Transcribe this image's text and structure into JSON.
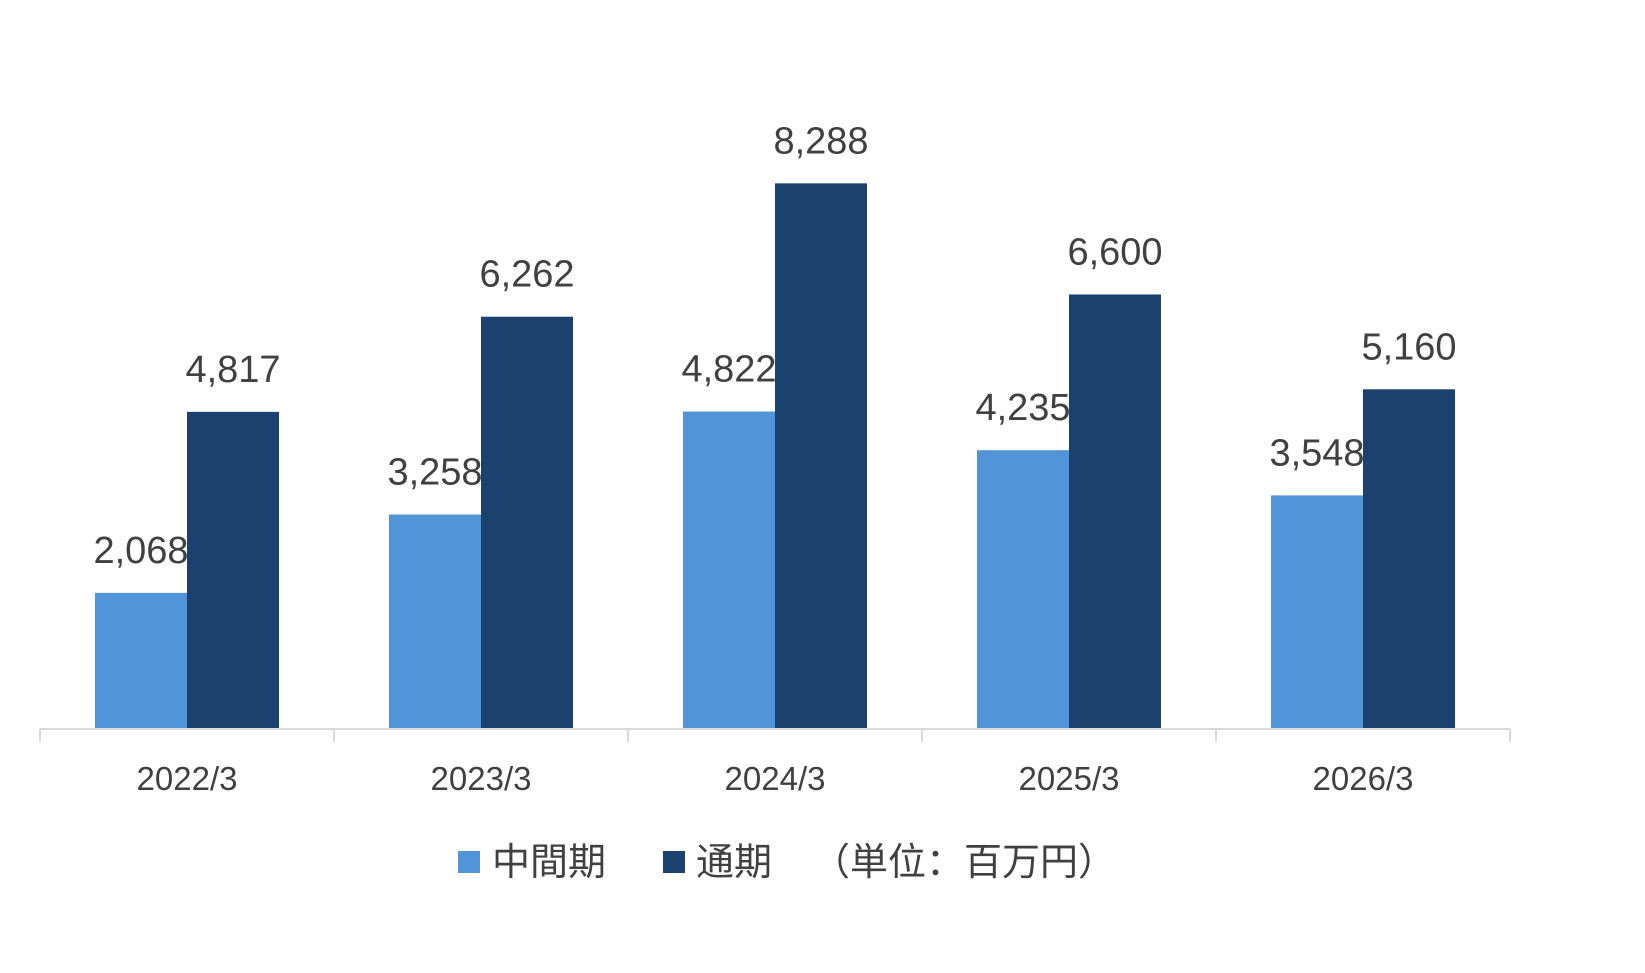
{
  "chart_data": {
    "type": "bar",
    "categories": [
      "2022/3",
      "2023/3",
      "2024/3",
      "2025/3",
      "2026/3"
    ],
    "series": [
      {
        "name": "中間期",
        "color": "#4f95d8",
        "values": [
          2068,
          3258,
          4822,
          4235,
          3548
        ],
        "labels": [
          "2,068",
          "3,258",
          "4,822",
          "4,235",
          "3,548"
        ]
      },
      {
        "name": "通期",
        "color": "#1b426e",
        "values": [
          4817,
          6262,
          8288,
          6600,
          5160
        ],
        "labels": [
          "4,817",
          "6,262",
          "8,288",
          "6,600",
          "5,160"
        ]
      }
    ],
    "unit_note": "（単位：百万円）",
    "ylim": [
      0,
      9250
    ],
    "grid": false,
    "legend": "bottom-center",
    "axis_color": "#d9d9d9"
  }
}
